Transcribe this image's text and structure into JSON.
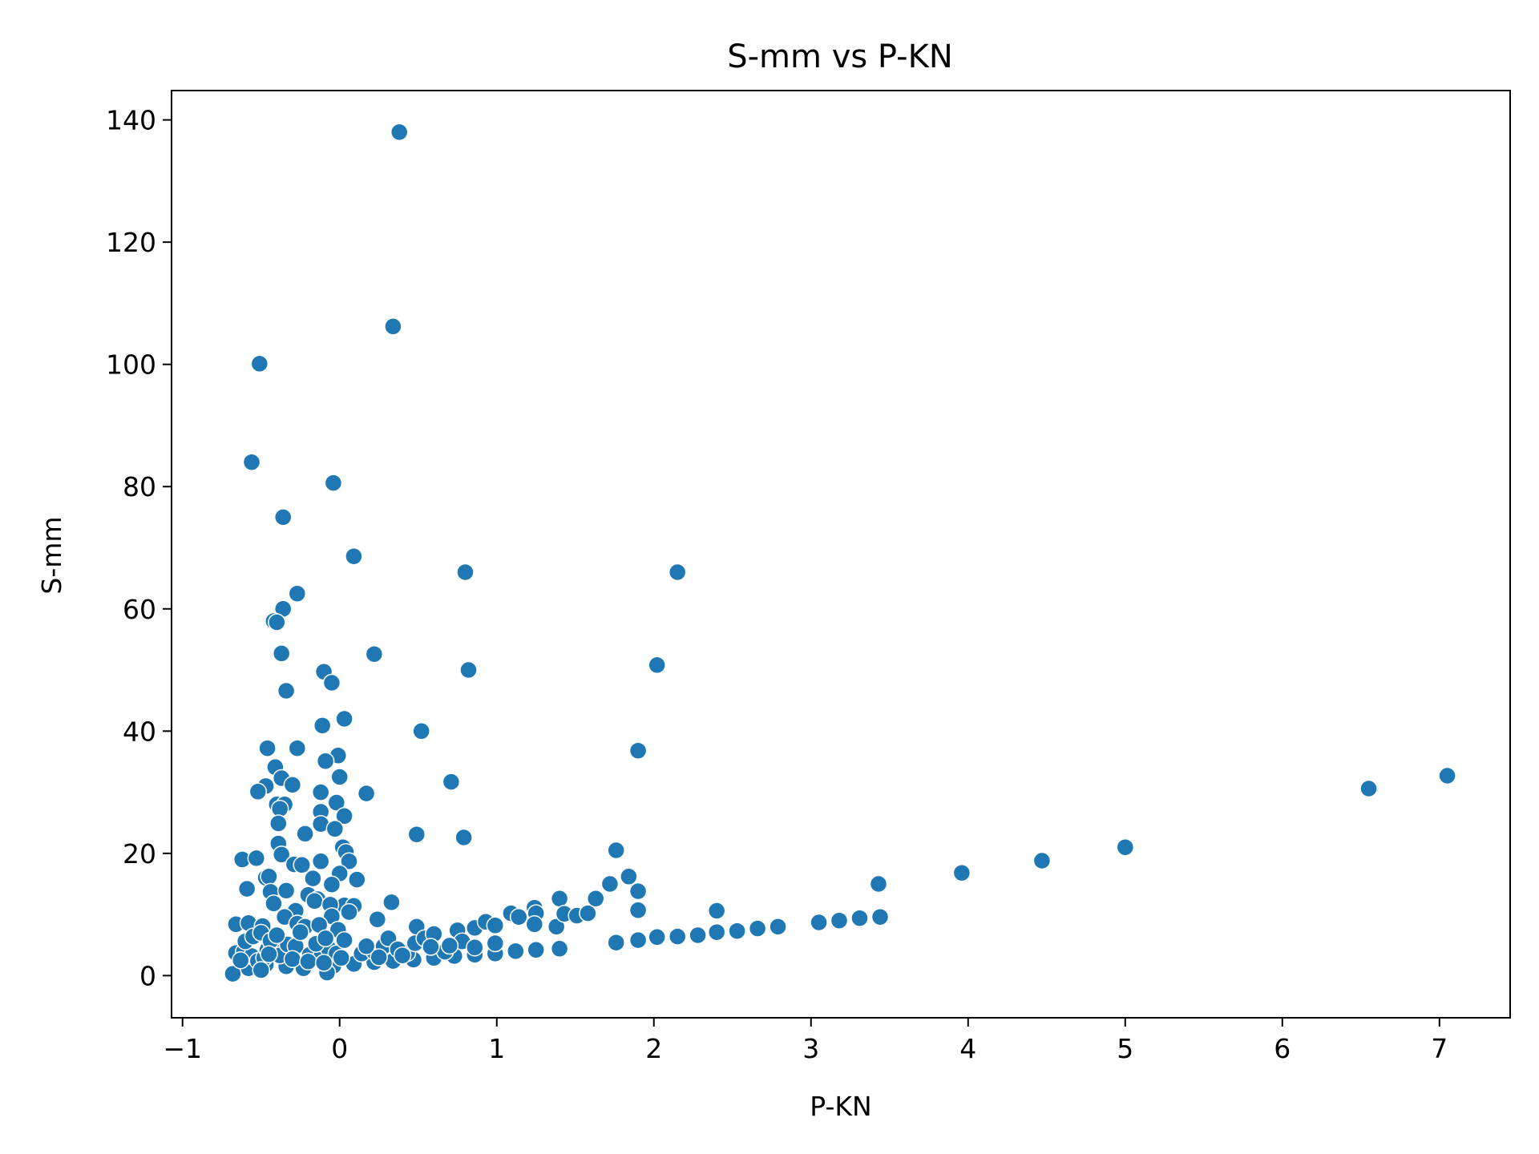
{
  "chart_data": {
    "type": "scatter",
    "title": "S-mm vs P-KN",
    "xlabel": "P-KN",
    "ylabel": "S-mm",
    "xlim": [
      -1.07,
      7.45
    ],
    "ylim": [
      -6.9,
      144.8
    ],
    "xticks": [
      -1,
      0,
      1,
      2,
      3,
      4,
      5,
      6,
      7
    ],
    "xtick_labels": [
      "−1",
      "0",
      "1",
      "2",
      "3",
      "4",
      "5",
      "6",
      "7"
    ],
    "yticks": [
      0,
      20,
      40,
      60,
      80,
      100,
      120,
      140
    ],
    "ytick_labels": [
      "0",
      "20",
      "40",
      "60",
      "80",
      "100",
      "120",
      "140"
    ],
    "grid": false,
    "legend": "none",
    "marker_color": "#1f77b4",
    "marker_edge": "#ffffff",
    "points": [
      [
        0.38,
        138
      ],
      [
        0.34,
        106.2
      ],
      [
        -0.51,
        100.1
      ],
      [
        -0.56,
        84
      ],
      [
        -0.04,
        80.6
      ],
      [
        -0.36,
        75
      ],
      [
        0.09,
        68.6
      ],
      [
        0.8,
        66
      ],
      [
        2.15,
        66
      ],
      [
        -0.27,
        62.5
      ],
      [
        -0.36,
        60
      ],
      [
        -0.42,
        58
      ],
      [
        -0.4,
        57.8
      ],
      [
        -0.37,
        52.7
      ],
      [
        0.22,
        52.6
      ],
      [
        2.02,
        50.8
      ],
      [
        0.82,
        50
      ],
      [
        -0.1,
        49.7
      ],
      [
        -0.05,
        47.9
      ],
      [
        -0.34,
        46.6
      ],
      [
        0.03,
        42
      ],
      [
        -0.11,
        40.9
      ],
      [
        0.52,
        40
      ],
      [
        -0.46,
        37.2
      ],
      [
        -0.27,
        37.2
      ],
      [
        1.9,
        36.8
      ],
      [
        -0.01,
        36
      ],
      [
        -0.09,
        35.1
      ],
      [
        -0.41,
        34.1
      ],
      [
        -0.37,
        32.3
      ],
      [
        0,
        32.5
      ],
      [
        0.71,
        31.7
      ],
      [
        -0.47,
        31
      ],
      [
        -0.3,
        31.2
      ],
      [
        -0.52,
        30.1
      ],
      [
        -0.12,
        30
      ],
      [
        0.17,
        29.8
      ],
      [
        -0.4,
        28
      ],
      [
        -0.35,
        28
      ],
      [
        -0.02,
        28.3
      ],
      [
        -0.38,
        27.3
      ],
      [
        -0.12,
        26.8
      ],
      [
        0.03,
        26.1
      ],
      [
        -0.39,
        24.9
      ],
      [
        -0.12,
        24.8
      ],
      [
        -0.03,
        24
      ],
      [
        -0.22,
        23.2
      ],
      [
        0.49,
        23.1
      ],
      [
        0.79,
        22.6
      ],
      [
        -0.39,
        21.6
      ],
      [
        0.02,
        21
      ],
      [
        0.04,
        20.2
      ],
      [
        -0.37,
        19.8
      ],
      [
        0.06,
        18.7
      ],
      [
        -0.62,
        19
      ],
      [
        -0.53,
        19.2
      ],
      [
        -0.12,
        18.7
      ],
      [
        -0.29,
        18.2
      ],
      [
        -0.24,
        18.1
      ],
      [
        -0.47,
        16
      ],
      [
        -0.45,
        16.2
      ],
      [
        0,
        16.7
      ],
      [
        0.11,
        15.7
      ],
      [
        -0.17,
        15.9
      ],
      [
        -0.05,
        14.9
      ],
      [
        -0.59,
        14.2
      ],
      [
        -0.44,
        13.7
      ],
      [
        -0.34,
        13.9
      ],
      [
        -0.2,
        13.2
      ],
      [
        -0.14,
        12.5
      ],
      [
        -0.42,
        11.8
      ],
      [
        -0.16,
        12.2
      ],
      [
        0.03,
        11.5
      ],
      [
        0.09,
        11.4
      ],
      [
        -0.06,
        11.6
      ],
      [
        0.33,
        12
      ],
      [
        -0.28,
        10.6
      ],
      [
        -0.35,
        9.6
      ],
      [
        -0.05,
        9.7
      ],
      [
        0.06,
        10.4
      ],
      [
        0.24,
        9.2
      ],
      [
        -0.27,
        8.5
      ],
      [
        -0.22,
        8
      ],
      [
        -0.66,
        8.4
      ],
      [
        -0.58,
        8.6
      ],
      [
        -0.49,
        8.1
      ],
      [
        -0.13,
        8.3
      ],
      [
        -0.01,
        7.5
      ],
      [
        0.49,
        8
      ],
      [
        0.75,
        7.4
      ],
      [
        0.86,
        7.8
      ],
      [
        0.93,
        8.8
      ],
      [
        0.99,
        8.2
      ],
      [
        1.09,
        10.2
      ],
      [
        1.14,
        9.6
      ],
      [
        1.24,
        11.1
      ],
      [
        1.25,
        10.2
      ],
      [
        1.24,
        8.4
      ],
      [
        1.38,
        8
      ],
      [
        1.4,
        12.6
      ],
      [
        1.43,
        10.1
      ],
      [
        1.51,
        9.8
      ],
      [
        1.58,
        10.2
      ],
      [
        1.63,
        12.6
      ],
      [
        1.72,
        15
      ],
      [
        1.76,
        20.5
      ],
      [
        1.84,
        16.2
      ],
      [
        1.9,
        13.8
      ],
      [
        1.9,
        10.7
      ],
      [
        2.4,
        10.6
      ],
      [
        3.43,
        15
      ],
      [
        3.96,
        16.8
      ],
      [
        4.47,
        18.8
      ],
      [
        5,
        21
      ],
      [
        6.55,
        30.6
      ],
      [
        7.05,
        32.7
      ],
      [
        1.76,
        5.4
      ],
      [
        1.9,
        5.8
      ],
      [
        2.02,
        6.3
      ],
      [
        2.15,
        6.4
      ],
      [
        2.28,
        6.6
      ],
      [
        2.4,
        7.1
      ],
      [
        2.53,
        7.3
      ],
      [
        2.66,
        7.7
      ],
      [
        2.79,
        8
      ],
      [
        3.05,
        8.7
      ],
      [
        3.18,
        9
      ],
      [
        3.31,
        9.4
      ],
      [
        3.44,
        9.6
      ],
      [
        1.25,
        4.2
      ],
      [
        1.12,
        4
      ],
      [
        0.99,
        3.6
      ],
      [
        0.86,
        3.4
      ],
      [
        0.73,
        3.2
      ],
      [
        0.6,
        2.9
      ],
      [
        0.47,
        2.6
      ],
      [
        0.34,
        2.4
      ],
      [
        0.22,
        2.2
      ],
      [
        0.09,
        1.9
      ],
      [
        -0.04,
        1.6
      ],
      [
        -0.08,
        0.5
      ],
      [
        -0.23,
        1.2
      ],
      [
        -0.34,
        1.5
      ],
      [
        -0.47,
        1.8
      ],
      [
        -0.58,
        1.2
      ],
      [
        -0.68,
        0.3
      ],
      [
        -0.66,
        3.7
      ],
      [
        -0.61,
        3.9
      ],
      [
        -0.56,
        3.2
      ],
      [
        -0.52,
        2.4
      ],
      [
        -0.48,
        2.9
      ],
      [
        -0.46,
        4.2
      ],
      [
        -0.43,
        4.7
      ],
      [
        -0.38,
        3.3
      ],
      [
        -0.33,
        5.1
      ],
      [
        -0.28,
        4.8
      ],
      [
        -0.19,
        3.4
      ],
      [
        -0.12,
        3
      ],
      [
        -0.07,
        4.4
      ],
      [
        -0.02,
        3.6
      ],
      [
        0.01,
        2.9
      ],
      [
        0.14,
        3.6
      ],
      [
        0.22,
        3.9
      ],
      [
        0.28,
        4.8
      ],
      [
        0.31,
        6.1
      ],
      [
        0.43,
        3.7
      ],
      [
        0.48,
        5.3
      ],
      [
        0.54,
        6.1
      ],
      [
        0.6,
        6.8
      ],
      [
        0.67,
        3.9
      ],
      [
        0.78,
        5.6
      ],
      [
        0.86,
        4.6
      ],
      [
        0.99,
        5.3
      ],
      [
        1.4,
        4.4
      ],
      [
        -0.6,
        5.6
      ],
      [
        -0.55,
        6.4
      ],
      [
        -0.5,
        7
      ],
      [
        -0.44,
        5.7
      ],
      [
        -0.4,
        6.6
      ],
      [
        -0.25,
        7.1
      ],
      [
        -0.15,
        5.2
      ],
      [
        -0.09,
        6.1
      ],
      [
        0.03,
        5.8
      ],
      [
        0.17,
        4.8
      ],
      [
        0.37,
        4.3
      ],
      [
        -0.63,
        2.5
      ],
      [
        -0.5,
        0.9
      ],
      [
        -0.45,
        3.5
      ],
      [
        -0.3,
        2.7
      ],
      [
        -0.2,
        2.3
      ],
      [
        -0.1,
        2.1
      ],
      [
        0.25,
        3
      ],
      [
        0.4,
        3.3
      ],
      [
        0.58,
        4.7
      ],
      [
        0.7,
        4.9
      ]
    ]
  }
}
